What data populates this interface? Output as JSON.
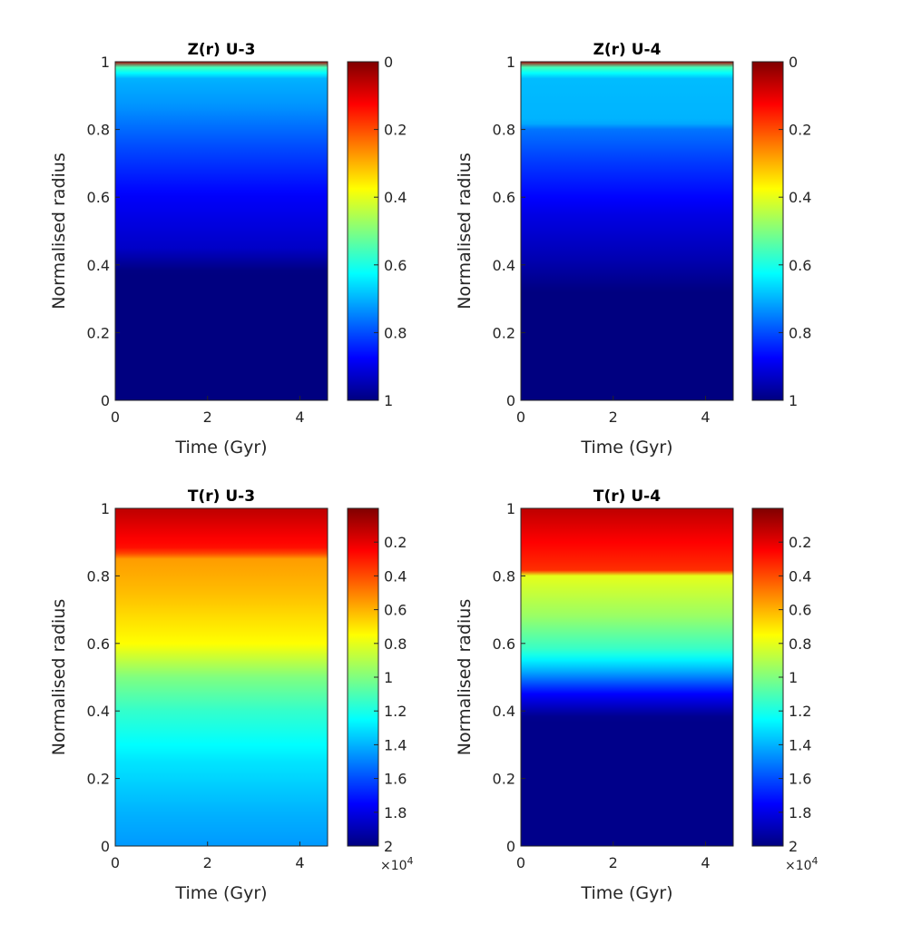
{
  "chart_data": [
    {
      "type": "heatmap",
      "title": "Z(r) U-3",
      "xlabel": "Time (Gyr)",
      "ylabel": "Normalised radius",
      "xlim": [
        0,
        4.6
      ],
      "ylim": [
        0,
        1
      ],
      "x_ticks": [
        "0",
        "2",
        "4"
      ],
      "y_ticks": [
        "0",
        "0.2",
        "0.4",
        "0.6",
        "0.8",
        "1"
      ],
      "colorbar": {
        "range": [
          0,
          1
        ],
        "reversed": true,
        "ticks": [
          "0",
          "0.2",
          "0.4",
          "0.6",
          "0.8",
          "1"
        ],
        "multiplier": ""
      },
      "colormap": "jet",
      "profile": [
        {
          "r": 0.0,
          "value": 1.0
        },
        {
          "r": 0.38,
          "value": 1.0
        },
        {
          "r": 0.45,
          "value": 0.93
        },
        {
          "r": 0.6,
          "value": 0.88
        },
        {
          "r": 0.75,
          "value": 0.8
        },
        {
          "r": 0.87,
          "value": 0.73
        },
        {
          "r": 0.95,
          "value": 0.7
        },
        {
          "r": 0.985,
          "value": 0.55
        },
        {
          "r": 1.0,
          "value": 0.05
        }
      ]
    },
    {
      "type": "heatmap",
      "title": "Z(r) U-4",
      "xlabel": "Time (Gyr)",
      "ylabel": "Normalised radius",
      "xlim": [
        0,
        4.6
      ],
      "ylim": [
        0,
        1
      ],
      "x_ticks": [
        "0",
        "2",
        "4"
      ],
      "y_ticks": [
        "0",
        "0.2",
        "0.4",
        "0.6",
        "0.8",
        "1"
      ],
      "colorbar": {
        "range": [
          0,
          1
        ],
        "reversed": true,
        "ticks": [
          "0",
          "0.2",
          "0.4",
          "0.6",
          "0.8",
          "1"
        ],
        "multiplier": ""
      },
      "colormap": "jet",
      "profile": [
        {
          "r": 0.0,
          "value": 1.0
        },
        {
          "r": 0.32,
          "value": 1.0
        },
        {
          "r": 0.42,
          "value": 0.95
        },
        {
          "r": 0.55,
          "value": 0.9
        },
        {
          "r": 0.7,
          "value": 0.82
        },
        {
          "r": 0.8,
          "value": 0.76
        },
        {
          "r": 0.82,
          "value": 0.7
        },
        {
          "r": 0.95,
          "value": 0.69
        },
        {
          "r": 0.985,
          "value": 0.55
        },
        {
          "r": 1.0,
          "value": 0.05
        }
      ]
    },
    {
      "type": "heatmap",
      "title": "T(r) U-3",
      "xlabel": "Time (Gyr)",
      "ylabel": "Normalised radius",
      "xlim": [
        0,
        4.6
      ],
      "ylim": [
        0,
        1
      ],
      "x_ticks": [
        "0",
        "2",
        "4"
      ],
      "y_ticks": [
        "0",
        "0.2",
        "0.4",
        "0.6",
        "0.8",
        "1"
      ],
      "colorbar": {
        "range": [
          0,
          2
        ],
        "reversed": true,
        "ticks": [
          "0.2",
          "0.4",
          "0.6",
          "0.8",
          "1",
          "1.2",
          "1.4",
          "1.6",
          "1.8",
          "2"
        ],
        "multiplier": "×10^4"
      },
      "colormap": "jet",
      "profile": [
        {
          "r": 0.0,
          "value": 1.45
        },
        {
          "r": 0.1,
          "value": 1.4
        },
        {
          "r": 0.25,
          "value": 1.3
        },
        {
          "r": 0.4,
          "value": 1.15
        },
        {
          "r": 0.5,
          "value": 1.0
        },
        {
          "r": 0.6,
          "value": 0.75
        },
        {
          "r": 0.75,
          "value": 0.62
        },
        {
          "r": 0.86,
          "value": 0.55
        },
        {
          "r": 0.87,
          "value": 0.3
        },
        {
          "r": 1.0,
          "value": 0.12
        }
      ]
    },
    {
      "type": "heatmap",
      "title": "T(r) U-4",
      "xlabel": "Time (Gyr)",
      "ylabel": "Normalised radius",
      "xlim": [
        0,
        4.6
      ],
      "ylim": [
        0,
        1
      ],
      "x_ticks": [
        "0",
        "2",
        "4"
      ],
      "y_ticks": [
        "0",
        "0.2",
        "0.4",
        "0.6",
        "0.8",
        "1"
      ],
      "colorbar": {
        "range": [
          0,
          2
        ],
        "reversed": true,
        "ticks": [
          "0.2",
          "0.4",
          "0.6",
          "0.8",
          "1",
          "1.2",
          "1.4",
          "1.6",
          "1.8",
          "2"
        ],
        "multiplier": "×10^4"
      },
      "colormap": "jet",
      "profile": [
        {
          "r": 0.0,
          "value": 1.98
        },
        {
          "r": 0.38,
          "value": 1.98
        },
        {
          "r": 0.45,
          "value": 1.75
        },
        {
          "r": 0.52,
          "value": 1.4
        },
        {
          "r": 0.58,
          "value": 1.15
        },
        {
          "r": 0.68,
          "value": 0.95
        },
        {
          "r": 0.8,
          "value": 0.8
        },
        {
          "r": 0.81,
          "value": 0.35
        },
        {
          "r": 0.9,
          "value": 0.25
        },
        {
          "r": 1.0,
          "value": 0.12
        }
      ]
    }
  ]
}
